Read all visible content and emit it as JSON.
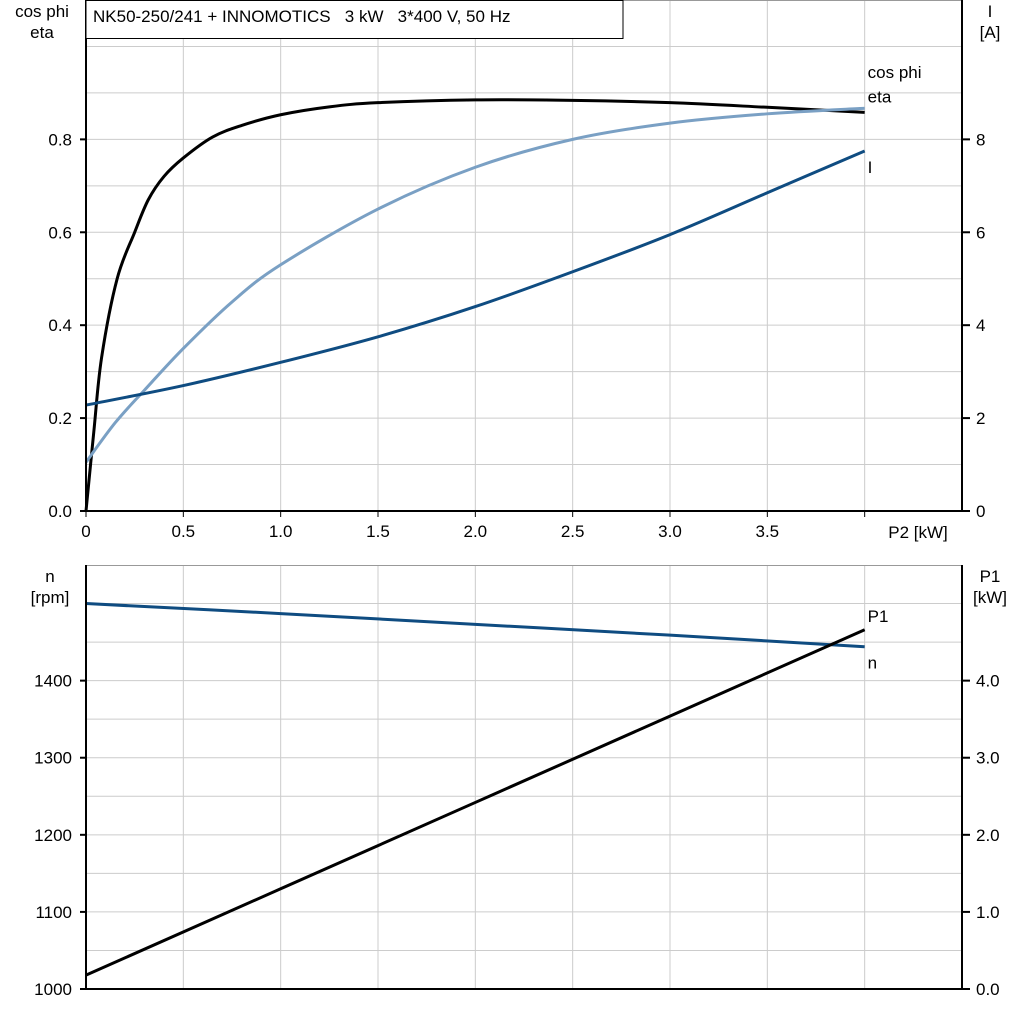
{
  "title": "NK50-250/241 + INNOMOTICS   3 kW   3*400 V, 50 Hz",
  "colors": {
    "eta": "#000000",
    "cos_phi": "#7aa0c4",
    "I": "#0f4c81",
    "n": "#0f4c81",
    "P1": "#000000",
    "grid": "#cccccc"
  },
  "chart_data": [
    {
      "type": "line",
      "xlabel": "P2 [kW]",
      "ylabel_left": [
        "cos phi",
        "eta"
      ],
      "ylabel_right": [
        "I",
        "[A]"
      ],
      "xlim": [
        0,
        4.5
      ],
      "ylim_left": [
        0,
        1.1
      ],
      "ylim_right": [
        0,
        11
      ],
      "grid": true,
      "x_ticks": [
        "0",
        "0.5",
        "1.0",
        "1.5",
        "2.0",
        "2.5",
        "3.0",
        "3.5"
      ],
      "y_ticks_left": [
        "0.0",
        "0.2",
        "0.4",
        "0.6",
        "0.8"
      ],
      "y_ticks_right": [
        "0",
        "2",
        "4",
        "6",
        "8"
      ],
      "series": [
        {
          "name": "eta",
          "axis": "left",
          "x": [
            0,
            0.04,
            0.08,
            0.16,
            0.25,
            0.32,
            0.4,
            0.5,
            0.65,
            0.8,
            1.0,
            1.25,
            1.5,
            2.0,
            2.5,
            3.0,
            3.5,
            4.0
          ],
          "y": [
            0,
            0.17,
            0.33,
            0.5,
            0.6,
            0.67,
            0.72,
            0.76,
            0.805,
            0.83,
            0.853,
            0.87,
            0.879,
            0.885,
            0.884,
            0.879,
            0.869,
            0.858
          ]
        },
        {
          "name": "cos phi",
          "axis": "left",
          "x": [
            0,
            0.15,
            0.3,
            0.5,
            0.75,
            1.0,
            1.5,
            2.0,
            2.5,
            3.0,
            3.5,
            4.0
          ],
          "y": [
            0.105,
            0.19,
            0.26,
            0.35,
            0.45,
            0.53,
            0.65,
            0.74,
            0.8,
            0.835,
            0.855,
            0.867
          ]
        },
        {
          "name": "I",
          "axis": "right",
          "x": [
            0,
            0.5,
            1.0,
            1.5,
            2.0,
            2.5,
            3.0,
            3.5,
            4.0
          ],
          "y": [
            2.28,
            2.7,
            3.2,
            3.75,
            4.4,
            5.15,
            5.95,
            6.85,
            7.75
          ]
        }
      ]
    },
    {
      "type": "line",
      "ylabel_left": [
        "n",
        "[rpm]"
      ],
      "ylabel_right": [
        "P1",
        "[kW]"
      ],
      "xlim": [
        0,
        4.5
      ],
      "ylim_left": [
        1000,
        1550
      ],
      "ylim_right": [
        0,
        5.5
      ],
      "grid": true,
      "y_ticks_left": [
        "1000",
        "1100",
        "1200",
        "1300",
        "1400"
      ],
      "y_ticks_right": [
        "0.0",
        "1.0",
        "2.0",
        "3.0",
        "4.0"
      ],
      "series": [
        {
          "name": "n",
          "axis": "left",
          "x": [
            0,
            1.0,
            2.0,
            3.0,
            4.0
          ],
          "y": [
            1500,
            1487,
            1473,
            1459,
            1444
          ]
        },
        {
          "name": "P1",
          "axis": "right",
          "x": [
            0,
            1.0,
            2.0,
            3.0,
            4.0
          ],
          "y": [
            0.18,
            1.3,
            2.42,
            3.54,
            4.66
          ]
        }
      ]
    }
  ]
}
